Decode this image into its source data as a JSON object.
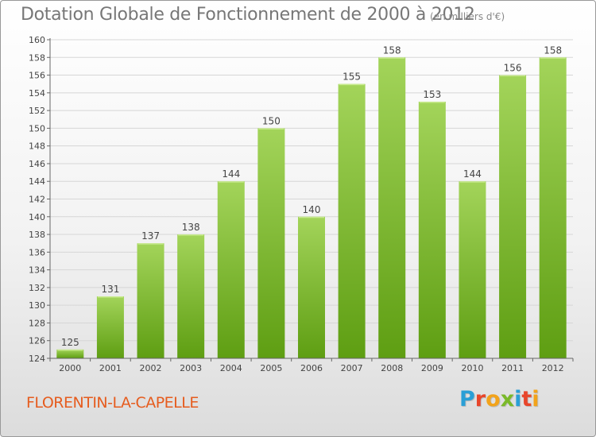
{
  "header": {
    "title": "Dotation Globale de Fonctionnement de 2000 à 2012",
    "subtitle": "(en milliers d'€)"
  },
  "footer": {
    "commune": "FLORENTIN-LA-CAPELLE",
    "logo_text": "Proxiti",
    "logo_colors": [
      "#2a9fd6",
      "#e8462b",
      "#f2a31b",
      "#7ab929",
      "#2a9fd6",
      "#e8462b",
      "#f2a31b"
    ]
  },
  "colors": {
    "bar_top": "#a3d45a",
    "bar_bottom": "#5e9e12",
    "title": "#777777",
    "commune": "#e65c1e"
  },
  "chart_data": {
    "type": "bar",
    "title": "Dotation Globale de Fonctionnement de 2000 à 2012",
    "subtitle": "(en milliers d'€)",
    "categories": [
      "2000",
      "2001",
      "2002",
      "2003",
      "2004",
      "2005",
      "2006",
      "2007",
      "2008",
      "2009",
      "2010",
      "2011",
      "2012"
    ],
    "values": [
      125,
      131,
      137,
      138,
      144,
      150,
      140,
      155,
      158,
      153,
      144,
      156,
      158
    ],
    "ylim": [
      124,
      160
    ],
    "ytick_step": 2,
    "grid": true,
    "legend": "none"
  }
}
